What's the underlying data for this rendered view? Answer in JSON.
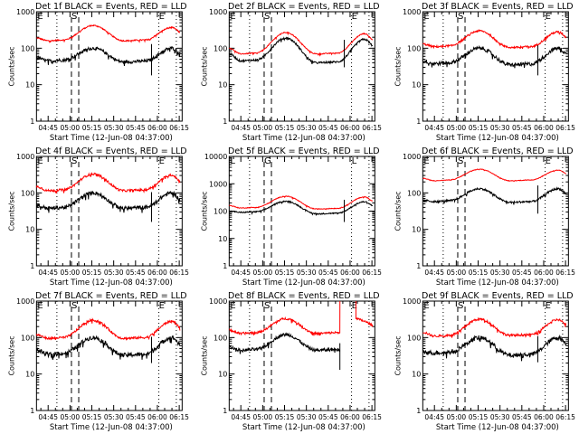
{
  "chart_data": [
    {
      "type": "line",
      "title": "Det 1f BLACK = Events, RED = LLD",
      "xlabel": "Start Time (12-Jun-08 04:37:00)",
      "ylabel": "Counts/sec",
      "yscale": "log",
      "ylim": [
        1,
        1000
      ],
      "ytick_labels": [
        "1",
        "10",
        "100",
        "1000"
      ],
      "xlim_minutes_after_start": [
        0,
        100
      ],
      "xtick_labels": [
        "04:45",
        "05:00",
        "05:15",
        "05:30",
        "05:45",
        "06:00",
        "06:15"
      ],
      "markers": [
        {
          "label": "E",
          "time": "04:37"
        },
        {
          "label": "S",
          "time": "05:01"
        },
        {
          "label": "E",
          "time": "06:01"
        }
      ],
      "dotted_lines": [
        "04:51",
        "06:01",
        "06:13"
      ],
      "dashed_lines": [
        "05:01",
        "05:06"
      ],
      "series": [
        {
          "name": "LLD",
          "color": "#ff0000",
          "profile": {
            "start": 190,
            "low1": 160,
            "peak1": 420,
            "low2": 160,
            "peak2": 370,
            "end": 260
          },
          "noise": 0.04
        },
        {
          "name": "Events",
          "color": "#000000",
          "profile": {
            "start": 55,
            "low1": 45,
            "peak1": 100,
            "low2": 42,
            "peak2": 100,
            "end": 70
          },
          "noise": 0.1,
          "spike": {
            "time": "05:56",
            "min": 18,
            "max": 130
          }
        }
      ]
    },
    {
      "type": "line",
      "title": "Det 2f BLACK = Events, RED = LLD",
      "xlabel": "Start Time (12-Jun-08 04:37:00)",
      "ylabel": "Counts/sec",
      "yscale": "log",
      "ylim": [
        1,
        1000
      ],
      "ytick_labels": [
        "1",
        "10",
        "100",
        "1000"
      ],
      "xlim_minutes_after_start": [
        0,
        100
      ],
      "xtick_labels": [
        "04:45",
        "05:00",
        "05:15",
        "05:30",
        "05:45",
        "06:00",
        "06:15"
      ],
      "markers": [
        {
          "label": "E",
          "time": "04:37"
        },
        {
          "label": "S",
          "time": "05:01"
        },
        {
          "label": "E",
          "time": "06:01"
        }
      ],
      "dotted_lines": [
        "04:51",
        "06:01",
        "06:13"
      ],
      "dashed_lines": [
        "05:01",
        "05:06"
      ],
      "series": [
        {
          "name": "LLD",
          "color": "#ff0000",
          "profile": {
            "start": 100,
            "low1": 70,
            "peak1": 270,
            "low2": 70,
            "peak2": 250,
            "end": 160
          },
          "noise": 0.03
        },
        {
          "name": "Events",
          "color": "#000000",
          "profile": {
            "start": 70,
            "low1": 45,
            "peak1": 190,
            "low2": 40,
            "peak2": 175,
            "end": 110
          },
          "noise": 0.06,
          "spike": {
            "time": "05:56",
            "min": 30,
            "max": 170
          }
        }
      ]
    },
    {
      "type": "line",
      "title": "Det 3f BLACK = Events, RED = LLD",
      "xlabel": "Start Time (12-Jun-08 04:37:00)",
      "ylabel": "Counts/sec",
      "yscale": "log",
      "ylim": [
        1,
        1000
      ],
      "ytick_labels": [
        "1",
        "10",
        "100",
        "1000"
      ],
      "xlim_minutes_after_start": [
        0,
        100
      ],
      "xtick_labels": [
        "04:45",
        "05:00",
        "05:15",
        "05:30",
        "05:45",
        "06:00",
        "06:15"
      ],
      "markers": [
        {
          "label": "E",
          "time": "04:37"
        },
        {
          "label": "S",
          "time": "05:01"
        },
        {
          "label": "E",
          "time": "06:01"
        }
      ],
      "dotted_lines": [
        "04:51",
        "06:01",
        "06:13"
      ],
      "dashed_lines": [
        "05:01",
        "05:06"
      ],
      "series": [
        {
          "name": "LLD",
          "color": "#ff0000",
          "profile": {
            "start": 130,
            "low1": 110,
            "peak1": 300,
            "low2": 105,
            "peak2": 280,
            "end": 190
          },
          "noise": 0.06
        },
        {
          "name": "Events",
          "color": "#000000",
          "profile": {
            "start": 45,
            "low1": 38,
            "peak1": 100,
            "low2": 35,
            "peak2": 100,
            "end": 65
          },
          "noise": 0.12,
          "spike": {
            "time": "05:56",
            "min": 18,
            "max": 120
          }
        }
      ]
    },
    {
      "type": "line",
      "title": "Det 4f BLACK = Events, RED = LLD",
      "xlabel": "Start Time (12-Jun-08 04:37:00)",
      "ylabel": "Counts/sec",
      "yscale": "log",
      "ylim": [
        1,
        1000
      ],
      "ytick_labels": [
        "1",
        "10",
        "100",
        "1000"
      ],
      "xlim_minutes_after_start": [
        0,
        100
      ],
      "xtick_labels": [
        "04:45",
        "05:00",
        "05:15",
        "05:30",
        "05:45",
        "06:00",
        "06:15"
      ],
      "markers": [
        {
          "label": "E",
          "time": "04:37"
        },
        {
          "label": "S",
          "time": "05:01"
        },
        {
          "label": "E",
          "time": "06:01"
        }
      ],
      "dotted_lines": [
        "04:51",
        "06:01",
        "06:13"
      ],
      "dashed_lines": [
        "05:01",
        "05:06"
      ],
      "series": [
        {
          "name": "LLD",
          "color": "#ff0000",
          "profile": {
            "start": 150,
            "low1": 115,
            "peak1": 330,
            "low2": 115,
            "peak2": 310,
            "end": 190
          },
          "noise": 0.07
        },
        {
          "name": "Events",
          "color": "#000000",
          "profile": {
            "start": 45,
            "low1": 38,
            "peak1": 100,
            "low2": 38,
            "peak2": 100,
            "end": 60
          },
          "noise": 0.12,
          "spike": {
            "time": "05:56",
            "min": 16,
            "max": 105
          }
        }
      ]
    },
    {
      "type": "line",
      "title": "Det 5f BLACK = Events, RED = LLD",
      "xlabel": "Start Time (12-Jun-08 04:37:00)",
      "ylabel": "Counts/sec",
      "yscale": "log",
      "ylim": [
        1,
        10000
      ],
      "ytick_labels": [
        "1",
        "10",
        "100",
        "1000",
        "10000"
      ],
      "xlim_minutes_after_start": [
        0,
        100
      ],
      "xtick_labels": [
        "04:45",
        "05:00",
        "05:15",
        "05:30",
        "05:45",
        "06:00",
        "06:15"
      ],
      "markers": [
        {
          "label": "L",
          "time": "04:37"
        },
        {
          "label": "G",
          "time": "05:01"
        },
        {
          "label": "L",
          "time": "06:01"
        }
      ],
      "dotted_lines": [
        "04:51",
        "06:01",
        "06:13"
      ],
      "dashed_lines": [
        "05:01",
        "05:06"
      ],
      "series": [
        {
          "name": "LLD",
          "color": "#ff0000",
          "profile": {
            "start": 160,
            "low1": 130,
            "peak1": 350,
            "low2": 120,
            "peak2": 330,
            "end": 220
          },
          "noise": 0.03
        },
        {
          "name": "Events",
          "color": "#000000",
          "profile": {
            "start": 100,
            "low1": 90,
            "peak1": 230,
            "low2": 80,
            "peak2": 220,
            "end": 150
          },
          "noise": 0.05,
          "spike": {
            "time": "05:56",
            "min": 40,
            "max": 260
          }
        }
      ]
    },
    {
      "type": "line",
      "title": "Det 6f BLACK = Events, RED = LLD",
      "xlabel": "Start Time (12-Jun-08 04:37:00)",
      "ylabel": "Counts/sec",
      "yscale": "log",
      "ylim": [
        1,
        1000
      ],
      "ytick_labels": [
        "1",
        "10",
        "100",
        "1000"
      ],
      "xlim_minutes_after_start": [
        0,
        100
      ],
      "xtick_labels": [
        "04:45",
        "05:00",
        "05:15",
        "05:30",
        "05:45",
        "06:00",
        "06:15"
      ],
      "markers": [
        {
          "label": "E",
          "time": "04:37"
        },
        {
          "label": "S",
          "time": "05:01"
        },
        {
          "label": "E",
          "time": "06:01"
        }
      ],
      "dotted_lines": [
        "04:51",
        "06:01",
        "06:13"
      ],
      "dashed_lines": [
        "05:01",
        "05:06"
      ],
      "series": [
        {
          "name": "LLD",
          "color": "#ff0000",
          "profile": {
            "start": 250,
            "low1": 215,
            "peak1": 450,
            "low2": 215,
            "peak2": 420,
            "end": 320
          },
          "noise": 0.02
        },
        {
          "name": "Events",
          "color": "#000000",
          "profile": {
            "start": 62,
            "low1": 58,
            "peak1": 130,
            "low2": 55,
            "peak2": 130,
            "end": 90
          },
          "noise": 0.06,
          "spike": {
            "time": "05:56",
            "min": 27,
            "max": 160
          }
        }
      ]
    },
    {
      "type": "line",
      "title": "Det 7f BLACK = Events, RED = LLD",
      "xlabel": "Start Time (12-Jun-08 04:37:00)",
      "ylabel": "Counts/sec",
      "yscale": "log",
      "ylim": [
        1,
        1000
      ],
      "ytick_labels": [
        "1",
        "10",
        "100",
        "1000"
      ],
      "xlim_minutes_after_start": [
        0,
        100
      ],
      "xtick_labels": [
        "04:45",
        "05:00",
        "05:15",
        "05:30",
        "05:45",
        "06:00",
        "06:15"
      ],
      "markers": [
        {
          "label": "E",
          "time": "04:37"
        },
        {
          "label": "S",
          "time": "05:01"
        },
        {
          "label": "E",
          "time": "06:01"
        }
      ],
      "dotted_lines": [
        "04:51",
        "06:01",
        "06:13"
      ],
      "dashed_lines": [
        "05:01",
        "05:06"
      ],
      "series": [
        {
          "name": "LLD",
          "color": "#ff0000",
          "profile": {
            "start": 120,
            "low1": 95,
            "peak1": 300,
            "low2": 95,
            "peak2": 280,
            "end": 180
          },
          "noise": 0.07
        },
        {
          "name": "Events",
          "color": "#000000",
          "profile": {
            "start": 45,
            "low1": 35,
            "peak1": 100,
            "low2": 33,
            "peak2": 100,
            "end": 60
          },
          "noise": 0.13,
          "spike": {
            "time": "05:56",
            "min": 20,
            "max": 105
          }
        }
      ]
    },
    {
      "type": "line",
      "title": "Det 8f BLACK = Events, RED = LLD",
      "xlabel": "Start Time (12-Jun-08 04:37:00)",
      "ylabel": "Counts/sec",
      "yscale": "log",
      "ylim": [
        1,
        1000
      ],
      "ytick_labels": [
        "1",
        "10",
        "100",
        "1000"
      ],
      "xlim_minutes_after_start": [
        0,
        100
      ],
      "xtick_labels": [
        "04:45",
        "05:00",
        "05:15",
        "05:30",
        "05:45",
        "06:00",
        "06:15"
      ],
      "markers": [
        {
          "label": "E",
          "time": "04:37"
        },
        {
          "label": "S",
          "time": "05:01"
        },
        {
          "label": "E",
          "time": "06:01"
        }
      ],
      "dotted_lines": [
        "04:51",
        "06:01",
        "06:13"
      ],
      "dashed_lines": [
        "05:01",
        "05:06"
      ],
      "series": [
        {
          "name": "LLD",
          "color": "#ff0000",
          "profile": {
            "start": 160,
            "low1": 130,
            "peak1": 330,
            "low2": 130,
            "peak2": 1000,
            "end": 210
          },
          "noise": 0.07,
          "gap": [
            "05:53",
            "06:04"
          ],
          "after_gap": [
            330,
            300,
            260,
            210
          ]
        },
        {
          "name": "Events",
          "color": "#000000",
          "profile": {
            "start": 55,
            "low1": 45,
            "peak1": 120,
            "low2": 45,
            "peak2": 55,
            "end": 55
          },
          "noise": 0.1,
          "cutoff": "05:53",
          "spike": {
            "time": "05:53",
            "min": 13,
            "max": 70
          }
        }
      ]
    },
    {
      "type": "line",
      "title": "Det 9f BLACK = Events, RED = LLD",
      "xlabel": "Start Time (12-Jun-08 04:37:00)",
      "ylabel": "Counts/sec",
      "yscale": "log",
      "ylim": [
        1,
        1000
      ],
      "ytick_labels": [
        "1",
        "10",
        "100",
        "1000"
      ],
      "xlim_minutes_after_start": [
        0,
        100
      ],
      "xtick_labels": [
        "04:45",
        "05:00",
        "05:15",
        "05:30",
        "05:45",
        "06:00",
        "06:15"
      ],
      "markers": [
        {
          "label": "E",
          "time": "04:37"
        },
        {
          "label": "S",
          "time": "05:01"
        },
        {
          "label": "E",
          "time": "06:01"
        }
      ],
      "dotted_lines": [
        "04:51",
        "06:01",
        "06:13"
      ],
      "dashed_lines": [
        "05:01",
        "05:06"
      ],
      "series": [
        {
          "name": "LLD",
          "color": "#ff0000",
          "profile": {
            "start": 140,
            "low1": 110,
            "peak1": 320,
            "low2": 115,
            "peak2": 310,
            "end": 210
          },
          "noise": 0.07
        },
        {
          "name": "Events",
          "color": "#000000",
          "profile": {
            "start": 40,
            "low1": 38,
            "peak1": 100,
            "low2": 33,
            "peak2": 100,
            "end": 65
          },
          "noise": 0.14,
          "spike": {
            "time": "05:56",
            "min": 21,
            "max": 110
          }
        }
      ]
    }
  ]
}
